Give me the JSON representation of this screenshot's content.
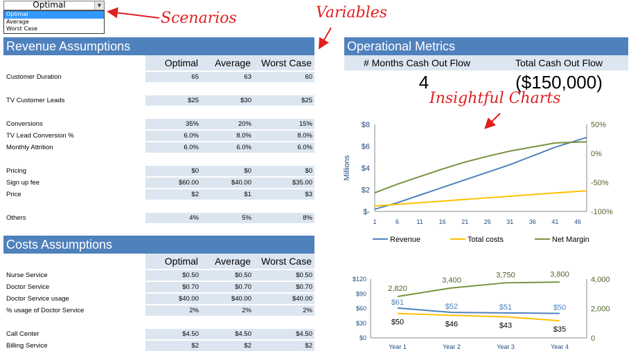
{
  "dropdown": {
    "selected": "Optimal",
    "options": [
      "Optimal",
      "Average",
      "Worst Case"
    ]
  },
  "annotations": {
    "scenarios": "Scenarios",
    "variables": "Variables",
    "insightful_charts": "Insightful Charts"
  },
  "revenue": {
    "title": "Revenue Assumptions",
    "columns": [
      "Optimal",
      "Average",
      "Worst Case"
    ],
    "rows": [
      {
        "label": "Customer Duration",
        "values": [
          "65",
          "63",
          "60"
        ]
      },
      {
        "label": "TV Customer Leads",
        "values": [
          "$25",
          "$30",
          "$25"
        ]
      },
      {
        "label": "Conversions",
        "values": [
          "35%",
          "20%",
          "15%"
        ]
      },
      {
        "label": "TV Lead Conversion %",
        "values": [
          "6.0%",
          "8.0%",
          "8.0%"
        ]
      },
      {
        "label": "Monthly Attrition",
        "values": [
          "6.0%",
          "6.0%",
          "6.0%"
        ]
      },
      {
        "label": "Pricing",
        "values": [
          "$0",
          "$0",
          "$0"
        ]
      },
      {
        "label": "Sign up fee",
        "values": [
          "$60.00",
          "$40.00",
          "$35.00"
        ]
      },
      {
        "label": "Price",
        "values": [
          "$2",
          "$1",
          "$3"
        ]
      },
      {
        "label": "Others",
        "values": [
          "4%",
          "5%",
          "8%"
        ]
      }
    ]
  },
  "costs": {
    "title": "Costs Assumptions",
    "columns": [
      "Optimal",
      "Average",
      "Worst Case"
    ],
    "rows": [
      {
        "label": "Nurse Service",
        "values": [
          "$0.50",
          "$0.50",
          "$0.50"
        ]
      },
      {
        "label": "Doctor Service",
        "values": [
          "$0.70",
          "$0.70",
          "$0.70"
        ]
      },
      {
        "label": "Doctor Service usage",
        "values": [
          "$40.00",
          "$40.00",
          "$40.00"
        ]
      },
      {
        "label": "% usage of Doctor Service",
        "values": [
          "2%",
          "2%",
          "2%"
        ]
      },
      {
        "label": "Call Center",
        "values": [
          "$4.50",
          "$4.50",
          "$4.50"
        ]
      },
      {
        "label": "Billing Service",
        "values": [
          "$2",
          "$2",
          "$2"
        ]
      }
    ]
  },
  "operational": {
    "title": "Operational Metrics",
    "months_label": "# Months Cash Out Flow",
    "months_value": "4",
    "cash_label": "Total Cash Out Flow",
    "cash_value": "($150,000)"
  },
  "chart_data": [
    {
      "type": "line",
      "ylabel": "Millions",
      "x_ticks": [
        "1",
        "6",
        "11",
        "16",
        "21",
        "26",
        "31",
        "36",
        "41",
        "46"
      ],
      "y_ticks": [
        "$-",
        "$2",
        "$4",
        "$6",
        "$8"
      ],
      "y2_ticks": [
        "-100%",
        "-50%",
        "0%",
        "50%"
      ],
      "ylim": [
        0,
        8
      ],
      "y2lim": [
        -100,
        50
      ],
      "legend": "bottom",
      "series": [
        {
          "name": "Revenue",
          "axis": "left",
          "color": "#4f81bd",
          "x": [
            1,
            6,
            11,
            16,
            21,
            26,
            31,
            36,
            41,
            48
          ],
          "values": [
            0.2,
            0.8,
            1.5,
            2.2,
            2.9,
            3.6,
            4.3,
            5.1,
            5.9,
            6.8
          ]
        },
        {
          "name": "Total costs",
          "axis": "left",
          "color": "#ffc000",
          "x": [
            1,
            6,
            11,
            16,
            21,
            26,
            31,
            36,
            41,
            48
          ],
          "values": [
            0.5,
            0.65,
            0.8,
            0.95,
            1.1,
            1.25,
            1.4,
            1.55,
            1.7,
            1.9
          ]
        },
        {
          "name": "Net Margin",
          "axis": "right",
          "color": "#77933c",
          "x": [
            1,
            6,
            11,
            16,
            21,
            26,
            31,
            36,
            41,
            48
          ],
          "values": [
            -68,
            -53,
            -40,
            -27,
            -15,
            -5,
            4,
            11,
            18,
            20
          ]
        }
      ]
    },
    {
      "type": "line",
      "categories": [
        "Year 1",
        "Year 2",
        "Year 3",
        "Year 4"
      ],
      "y_ticks": [
        "$0",
        "$30",
        "$60",
        "$90",
        "$120"
      ],
      "y2_ticks": [
        "0",
        "2,000",
        "4,000"
      ],
      "ylim": [
        0,
        120
      ],
      "y2lim": [
        0,
        4000
      ],
      "series": [
        {
          "name": "",
          "axis": "right",
          "color": "#77933c",
          "values": [
            2820,
            3400,
            3750,
            3800
          ],
          "labels": [
            "2,820",
            "3,400",
            "3,750",
            "3,800"
          ]
        },
        {
          "name": "",
          "axis": "left",
          "color": "#4f81bd",
          "values": [
            61,
            52,
            51,
            50
          ],
          "labels": [
            "$61",
            "$52",
            "$51",
            "$50"
          ]
        },
        {
          "name": "",
          "axis": "left",
          "color": "#ffc000",
          "values": [
            50,
            46,
            43,
            35
          ],
          "labels": [
            "$50",
            "$46",
            "$43",
            "$35"
          ]
        }
      ]
    }
  ]
}
